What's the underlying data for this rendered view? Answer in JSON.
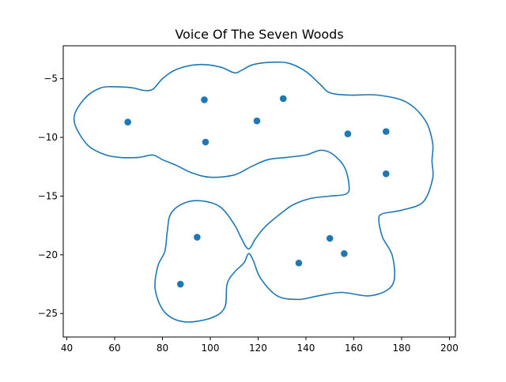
{
  "chart_data": {
    "type": "scatter",
    "title": "Voice Of The Seven Woods",
    "xlabel": "",
    "ylabel": "",
    "xlim": [
      38.5,
      202.5
    ],
    "ylim": [
      -27,
      -2.2
    ],
    "xticks": [
      40,
      60,
      80,
      100,
      120,
      140,
      160,
      180,
      200
    ],
    "yticks": [
      -25,
      -20,
      -15,
      -10,
      -5
    ],
    "grid": false,
    "colors": {
      "points": "#1f77b4",
      "outline": "#1f77b4"
    },
    "points": [
      {
        "x": 65.5,
        "y": -8.7
      },
      {
        "x": 97.5,
        "y": -6.8
      },
      {
        "x": 98,
        "y": -10.4
      },
      {
        "x": 119.5,
        "y": -8.6
      },
      {
        "x": 130.5,
        "y": -6.7
      },
      {
        "x": 157.5,
        "y": -9.7
      },
      {
        "x": 173.5,
        "y": -9.5
      },
      {
        "x": 173.5,
        "y": -13.1
      },
      {
        "x": 94.5,
        "y": -18.5
      },
      {
        "x": 87.5,
        "y": -22.5
      },
      {
        "x": 150,
        "y": -18.6
      },
      {
        "x": 156,
        "y": -19.9
      },
      {
        "x": 137,
        "y": -20.7
      }
    ],
    "outlines": [
      [
        [
          43,
          -8.5
        ],
        [
          47,
          -6.8
        ],
        [
          54,
          -5.8
        ],
        [
          62,
          -5.7
        ],
        [
          68,
          -5.8
        ],
        [
          72,
          -6
        ],
        [
          76,
          -5.9
        ],
        [
          80,
          -5
        ],
        [
          86,
          -4.2
        ],
        [
          95,
          -3.8
        ],
        [
          104,
          -4
        ],
        [
          110,
          -4.5
        ],
        [
          113,
          -4.3
        ],
        [
          118,
          -3.8
        ],
        [
          126,
          -3.6
        ],
        [
          133,
          -3.7
        ],
        [
          140,
          -4.4
        ],
        [
          146,
          -5.5
        ],
        [
          150,
          -6.2
        ],
        [
          158,
          -6.4
        ],
        [
          170,
          -6.4
        ],
        [
          182,
          -7
        ],
        [
          190,
          -8.6
        ],
        [
          193,
          -10.5
        ],
        [
          192.7,
          -12
        ],
        [
          193,
          -13.5
        ],
        [
          189,
          -15.5
        ],
        [
          180,
          -16.2
        ],
        [
          172,
          -16.5
        ],
        [
          170.5,
          -17
        ],
        [
          172,
          -18.5
        ],
        [
          176,
          -20
        ],
        [
          177,
          -22
        ],
        [
          174,
          -23
        ],
        [
          166,
          -23.5
        ],
        [
          155,
          -23.2
        ],
        [
          145,
          -23.5
        ],
        [
          137,
          -23.8
        ],
        [
          128,
          -23.5
        ],
        [
          121,
          -22
        ],
        [
          118,
          -20.5
        ],
        [
          116,
          -19.9
        ],
        [
          114,
          -20.7
        ],
        [
          110,
          -21.5
        ],
        [
          107,
          -22.5
        ],
        [
          106,
          -24.5
        ],
        [
          100,
          -25.4
        ],
        [
          89,
          -25.7
        ],
        [
          81,
          -24.9
        ],
        [
          77,
          -23
        ],
        [
          78,
          -21
        ],
        [
          81,
          -19.7
        ],
        [
          82,
          -18
        ],
        [
          83.5,
          -16.5
        ],
        [
          89,
          -15.6
        ],
        [
          96,
          -15.4
        ],
        [
          104,
          -15.9
        ],
        [
          110,
          -17.4
        ],
        [
          113,
          -18.6
        ],
        [
          116,
          -19.5
        ],
        [
          119,
          -18.6
        ],
        [
          123,
          -17.6
        ],
        [
          130,
          -16.4
        ],
        [
          135,
          -15.7
        ],
        [
          142,
          -15.2
        ],
        [
          150,
          -15
        ],
        [
          157,
          -14.8
        ],
        [
          158,
          -14
        ],
        [
          156,
          -12.5
        ],
        [
          151,
          -11.4
        ],
        [
          146,
          -11.1
        ],
        [
          140,
          -11.5
        ],
        [
          132,
          -11.7
        ],
        [
          124,
          -11.9
        ],
        [
          117,
          -12.5
        ],
        [
          110,
          -13.2
        ],
        [
          100,
          -13.4
        ],
        [
          92,
          -13
        ],
        [
          86,
          -12.4
        ],
        [
          80,
          -11.9
        ],
        [
          76,
          -11.5
        ],
        [
          70,
          -11.7
        ],
        [
          62,
          -11.7
        ],
        [
          55,
          -11.4
        ],
        [
          48,
          -10.5
        ],
        [
          43,
          -8.5
        ]
      ]
    ]
  }
}
